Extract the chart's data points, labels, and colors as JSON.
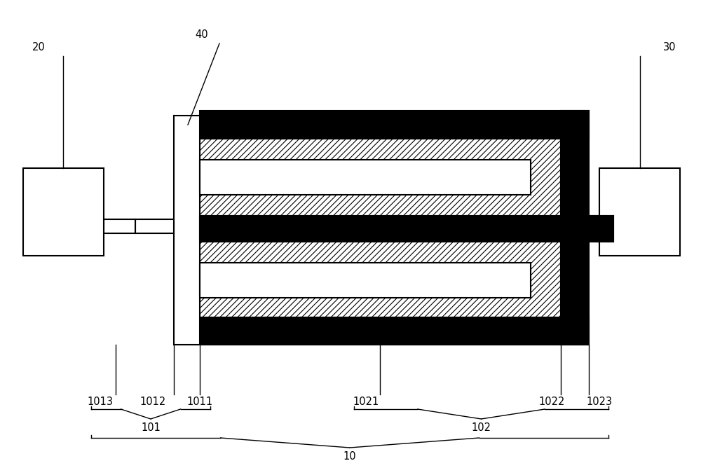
{
  "fig_width": 10.0,
  "fig_height": 6.78,
  "dpi": 100,
  "bg_color": "#ffffff",
  "black": "#000000",
  "white": "#ffffff",
  "label_20": "20",
  "label_30": "30",
  "label_40": "40",
  "label_10": "10",
  "label_101": "101",
  "label_102": "102",
  "label_1011": "1011",
  "label_1012": "1012",
  "label_1013": "1013",
  "label_1021": "1021",
  "label_1022": "1022",
  "label_1023": "1023",
  "fontsize": 10.5,
  "lw_main": 1.5,
  "lw_thin": 1.0,
  "hatch_lw": 0.8
}
